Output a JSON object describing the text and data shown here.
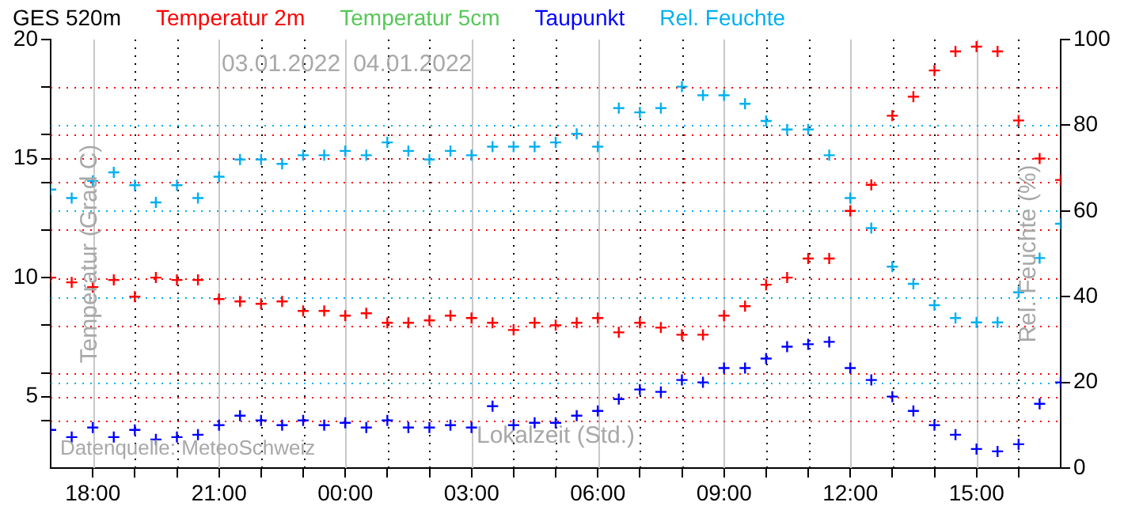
{
  "chart_data": {
    "type": "scatter",
    "title": "GES 520m",
    "xlabel": "Lokalzeit (Std.)",
    "ylabel": "Temperatur (Grad C)",
    "y2label": "Rel. Feuchte (%)",
    "annotations": [
      "03.01.2022",
      "04.01.2022",
      "Datenquelle: MeteoSchweiz"
    ],
    "x": [
      "2022-01-03T17:00",
      "2022-01-03T17:30",
      "2022-01-03T18:00",
      "2022-01-03T18:30",
      "2022-01-03T19:00",
      "2022-01-03T19:30",
      "2022-01-03T20:00",
      "2022-01-03T20:30",
      "2022-01-03T21:00",
      "2022-01-03T21:30",
      "2022-01-03T22:00",
      "2022-01-03T22:30",
      "2022-01-03T23:00",
      "2022-01-03T23:30",
      "2022-01-04T00:00",
      "2022-01-04T00:30",
      "2022-01-04T01:00",
      "2022-01-04T01:30",
      "2022-01-04T02:00",
      "2022-01-04T02:30",
      "2022-01-04T03:00",
      "2022-01-04T03:30",
      "2022-01-04T04:00",
      "2022-01-04T04:30",
      "2022-01-04T05:00",
      "2022-01-04T05:30",
      "2022-01-04T06:00",
      "2022-01-04T06:30",
      "2022-01-04T07:00",
      "2022-01-04T07:30",
      "2022-01-04T08:00",
      "2022-01-04T08:30",
      "2022-01-04T09:00",
      "2022-01-04T09:30",
      "2022-01-04T10:00",
      "2022-01-04T10:30",
      "2022-01-04T11:00",
      "2022-01-04T11:30",
      "2022-01-04T12:00",
      "2022-01-04T12:30",
      "2022-01-04T13:00",
      "2022-01-04T13:30",
      "2022-01-04T14:00",
      "2022-01-04T14:30",
      "2022-01-04T15:00",
      "2022-01-04T15:30",
      "2022-01-04T16:00",
      "2022-01-04T16:30",
      "2022-01-04T17:00"
    ],
    "series": [
      {
        "name": "Temperatur 2m",
        "color": "#ff0000",
        "values": [
          10.0,
          9.8,
          9.6,
          9.9,
          9.2,
          10.0,
          9.9,
          9.9,
          9.1,
          9.0,
          8.9,
          9.0,
          8.6,
          8.6,
          8.4,
          8.5,
          8.1,
          8.1,
          8.2,
          8.4,
          8.3,
          8.1,
          7.8,
          8.1,
          8.0,
          8.1,
          8.3,
          7.7,
          8.1,
          7.9,
          7.6,
          7.6,
          8.4,
          8.8,
          9.7,
          10.0,
          10.8,
          10.8,
          12.8,
          13.9,
          16.8,
          17.6,
          18.7,
          19.5,
          19.7,
          19.5,
          16.6,
          15.0,
          14.1
        ]
      },
      {
        "name": "Temperatur 5cm",
        "color": "#55c855",
        "values": [
          null,
          null,
          null,
          null,
          null,
          null,
          null,
          null,
          null,
          null,
          null,
          null,
          null,
          null,
          null,
          null,
          null,
          null,
          null,
          null,
          null,
          null,
          null,
          null,
          null,
          null,
          null,
          null,
          null,
          null,
          null,
          null,
          null,
          null,
          null,
          null,
          null,
          null,
          null,
          null,
          null,
          null,
          null,
          null,
          null,
          null,
          null,
          null,
          null
        ]
      },
      {
        "name": "Taupunkt",
        "color": "#0000ff",
        "values": [
          3.6,
          3.3,
          3.7,
          3.3,
          3.6,
          3.2,
          3.3,
          3.4,
          3.8,
          4.2,
          4.0,
          3.8,
          4.0,
          3.8,
          3.9,
          3.7,
          4.0,
          3.7,
          3.7,
          3.8,
          3.7,
          4.6,
          3.8,
          3.9,
          3.9,
          4.2,
          4.4,
          4.9,
          5.3,
          5.2,
          5.7,
          5.6,
          6.2,
          6.2,
          6.6,
          7.1,
          7.2,
          7.3,
          6.2,
          5.7,
          5.0,
          4.4,
          3.8,
          3.4,
          2.8,
          2.7,
          3.0,
          4.7,
          5.6
        ]
      },
      {
        "name": "Rel. Feuchte",
        "color": "#00b0f0",
        "axis": "y2",
        "values": [
          65,
          63,
          67,
          69,
          66,
          62,
          66,
          63,
          68,
          72,
          72,
          71,
          73,
          73,
          74,
          73,
          76,
          74,
          72,
          74,
          73,
          75,
          75,
          75,
          76,
          78,
          75,
          84,
          83,
          84,
          89,
          87,
          87,
          85,
          81,
          79,
          79,
          73,
          63,
          56,
          47,
          43,
          38,
          35,
          34,
          34,
          41,
          49,
          57
        ]
      }
    ],
    "xlim": [
      "2022-01-03T17:00",
      "2022-01-04T17:00"
    ],
    "xticks": [
      {
        "value": "2022-01-03T18:00",
        "label": "18:00"
      },
      {
        "value": "2022-01-03T19:00",
        "label": null
      },
      {
        "value": "2022-01-03T20:00",
        "label": null
      },
      {
        "value": "2022-01-03T21:00",
        "label": "21:00"
      },
      {
        "value": "2022-01-03T22:00",
        "label": null
      },
      {
        "value": "2022-01-03T23:00",
        "label": null
      },
      {
        "value": "2022-01-04T00:00",
        "label": "00:00"
      },
      {
        "value": "2022-01-04T01:00",
        "label": null
      },
      {
        "value": "2022-01-04T02:00",
        "label": null
      },
      {
        "value": "2022-01-04T03:00",
        "label": "03:00"
      },
      {
        "value": "2022-01-04T04:00",
        "label": null
      },
      {
        "value": "2022-01-04T05:00",
        "label": null
      },
      {
        "value": "2022-01-04T06:00",
        "label": "06:00"
      },
      {
        "value": "2022-01-04T07:00",
        "label": null
      },
      {
        "value": "2022-01-04T08:00",
        "label": null
      },
      {
        "value": "2022-01-04T09:00",
        "label": "09:00"
      },
      {
        "value": "2022-01-04T10:00",
        "label": null
      },
      {
        "value": "2022-01-04T11:00",
        "label": null
      },
      {
        "value": "2022-01-04T12:00",
        "label": "12:00"
      },
      {
        "value": "2022-01-04T13:00",
        "label": null
      },
      {
        "value": "2022-01-04T14:00",
        "label": null
      },
      {
        "value": "2022-01-04T15:00",
        "label": "15:00"
      },
      {
        "value": "2022-01-04T16:00",
        "label": null
      }
    ],
    "ylim": [
      2,
      20
    ],
    "yticks": [
      {
        "value": 4,
        "label": null
      },
      5,
      {
        "value": 6,
        "label": null
      },
      {
        "value": 8,
        "label": null
      },
      10,
      {
        "value": 12,
        "label": null
      },
      {
        "value": 14,
        "label": null
      },
      15,
      {
        "value": 16,
        "label": null
      },
      {
        "value": 18,
        "label": null
      },
      20
    ],
    "y2lim": [
      0,
      100
    ],
    "y2ticks": [
      0,
      20,
      40,
      60,
      80,
      100
    ],
    "grid": true,
    "legend": "top",
    "marker": "cross"
  }
}
